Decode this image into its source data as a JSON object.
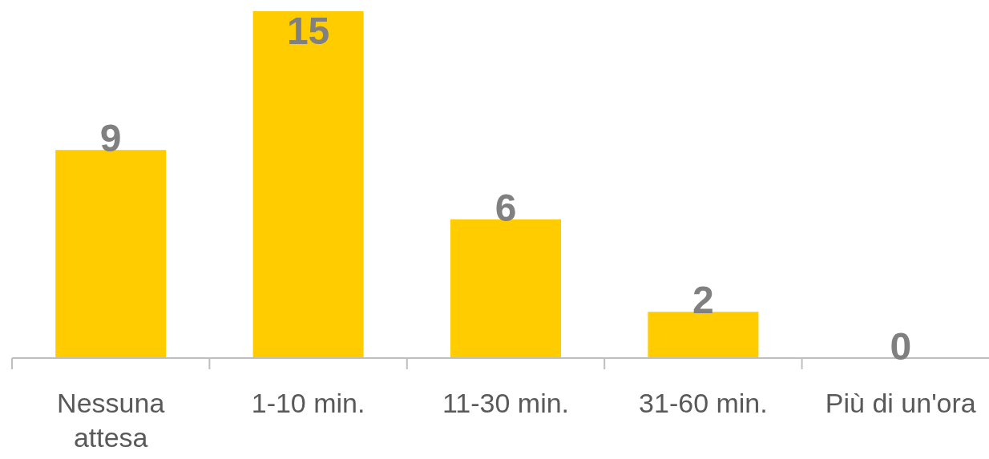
{
  "chart_data": {
    "type": "bar",
    "categories": [
      "Nessuna attesa",
      "1-10 min.",
      "11-30 min.",
      "31-60 min.",
      "Più di un'ora"
    ],
    "values": [
      9,
      15,
      6,
      2,
      0
    ],
    "color": "#ffcc00",
    "data_labels": true
  }
}
